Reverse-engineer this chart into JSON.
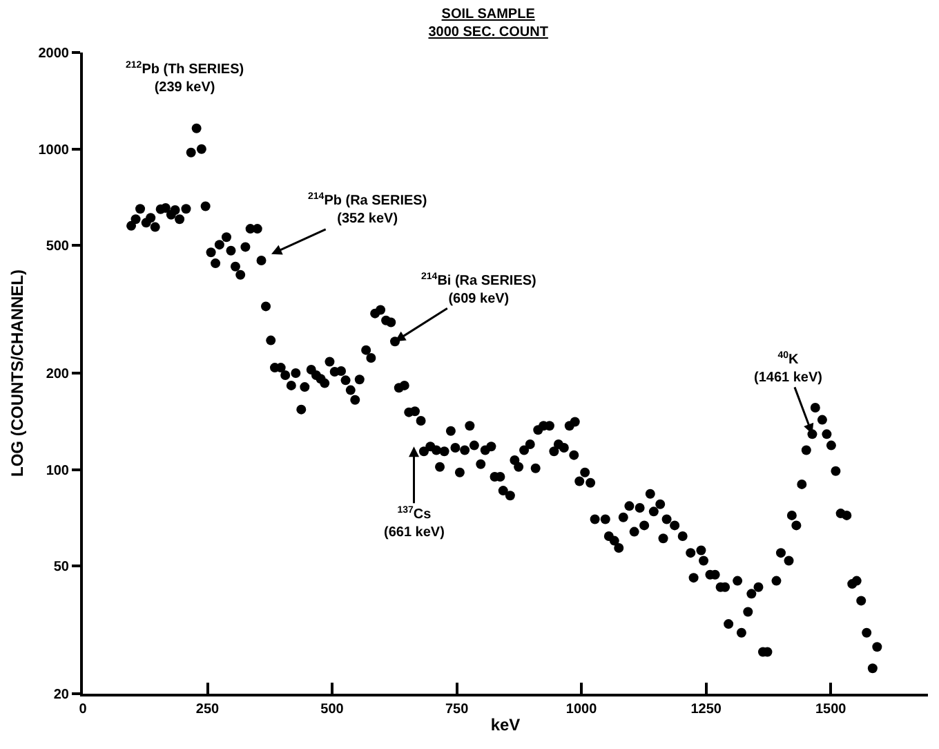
{
  "chart_data": {
    "type": "scatter",
    "title": "SOIL SAMPLE\n3000 SEC. COUNT",
    "xlabel": "keV",
    "ylabel": "LOG (COUNTS/CHANNEL)",
    "log": "y",
    "marker": "circle",
    "color": "#000000",
    "xlim": [
      0,
      1695
    ],
    "ylim": [
      20,
      2000
    ],
    "xticks": [
      0,
      250,
      500,
      750,
      1000,
      1250,
      1500
    ],
    "yticks": [
      20,
      50,
      100,
      200,
      500,
      1000,
      2000
    ],
    "x": [
      97,
      106,
      115,
      127,
      136,
      145,
      156,
      166,
      177,
      185,
      194,
      207,
      217,
      228,
      238,
      246,
      257,
      266,
      274,
      288,
      297,
      306,
      316,
      326,
      336,
      350,
      358,
      367,
      377,
      385,
      397,
      406,
      418,
      427,
      438,
      445,
      458,
      468,
      477,
      485,
      495,
      505,
      518,
      527,
      537,
      546,
      555,
      568,
      578,
      586,
      597,
      608,
      618,
      626,
      634,
      645,
      654,
      666,
      678,
      684,
      697,
      709,
      716,
      725,
      738,
      747,
      756,
      766,
      776,
      785,
      798,
      807,
      819,
      826,
      837,
      843,
      857,
      866,
      874,
      885,
      897,
      908,
      913,
      924,
      936,
      945,
      954,
      965,
      976,
      987,
      985,
      996,
      1007,
      1018,
      1027,
      1048,
      1055,
      1066,
      1075,
      1084,
      1096,
      1106,
      1117,
      1126,
      1138,
      1145,
      1158,
      1164,
      1171,
      1187,
      1203,
      1219,
      1225,
      1240,
      1245,
      1258,
      1268,
      1279,
      1288,
      1295,
      1313,
      1321,
      1334,
      1341,
      1355,
      1364,
      1373,
      1391,
      1400,
      1416,
      1422,
      1431,
      1442,
      1451,
      1463,
      1469,
      1483,
      1492,
      1501,
      1510,
      1520,
      1532,
      1543,
      1552,
      1561,
      1572,
      1584,
      1593
    ],
    "values": [
      576,
      604,
      651,
      589,
      610,
      571,
      649,
      655,
      624,
      645,
      604,
      651,
      975,
      1160,
      1000,
      663,
      476,
      440,
      503,
      531,
      482,
      430,
      405,
      495,
      564,
      564,
      449,
      323,
      253,
      208,
      208,
      197,
      183,
      200,
      154,
      181,
      205,
      197,
      192,
      186,
      217,
      202,
      203,
      190,
      177,
      165,
      191,
      236,
      223,
      307,
      315,
      292,
      288,
      251,
      180,
      183,
      151,
      152,
      142,
      114,
      118,
      115,
      102,
      114,
      132,
      117,
      98,
      115,
      137,
      119,
      104,
      115,
      118,
      95,
      95,
      86,
      83,
      107,
      102,
      115,
      120,
      101,
      133,
      137,
      137,
      114,
      120,
      117,
      137,
      141,
      111,
      92,
      98,
      91,
      70,
      70,
      62,
      60,
      57,
      71,
      77,
      64,
      76,
      67,
      84,
      74,
      78,
      61,
      70,
      67,
      62,
      55,
      46,
      56,
      52,
      47,
      47,
      43,
      43,
      33,
      45,
      31,
      36,
      41,
      43,
      27,
      27,
      45,
      55,
      52,
      72,
      67,
      90,
      115,
      129,
      156,
      143,
      129,
      119,
      99,
      73,
      72,
      44,
      45,
      39,
      31,
      24,
      28
    ],
    "annotations": [
      {
        "text": "$^{212}$Pb (Th SERIES)\n(239 keV)",
        "x": 228,
        "y": 1160
      },
      {
        "text": "$^{214}$Pb (Ra SERIES)\n(352 keV)",
        "x": 378,
        "y": 470
      },
      {
        "text": "$^{214}$Bi (Ra SERIES)\n(609 keV)",
        "x": 626,
        "y": 251
      },
      {
        "text": "$^{137}$Cs\n(661 keV)",
        "x": 664,
        "y": 118
      },
      {
        "text": "$^{40}$K\n(1461 keV)",
        "x": 1463,
        "y": 129
      }
    ]
  }
}
